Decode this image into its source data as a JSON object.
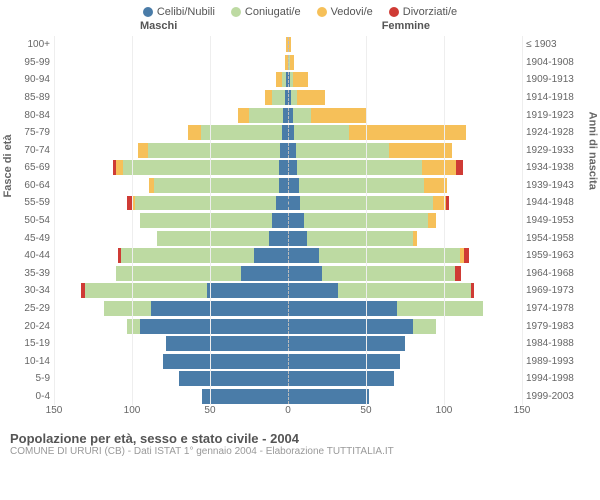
{
  "type": "population-pyramid",
  "legend": [
    {
      "label": "Celibi/Nubili",
      "color": "#4a7ca8"
    },
    {
      "label": "Coniugati/e",
      "color": "#bddaa2"
    },
    {
      "label": "Vedovi/e",
      "color": "#f6c059"
    },
    {
      "label": "Divorziati/e",
      "color": "#cf3b35"
    }
  ],
  "columns": {
    "left": "Maschi",
    "right": "Femmine"
  },
  "axes": {
    "left": "Fasce di età",
    "right": "Anni di nascita"
  },
  "xmax": 150,
  "xticks": [
    -150,
    -100,
    -50,
    0,
    50,
    100,
    150
  ],
  "xlabels": [
    "150",
    "100",
    "50",
    "0",
    "50",
    "100",
    "150"
  ],
  "grid_color": "#eeeeee",
  "centerline_color": "#bbbbbb",
  "background_color": "#ffffff",
  "label_color": "#666666",
  "label_fontsize": 10,
  "rows": [
    {
      "age": "100+",
      "birth": "≤ 1903",
      "m": [
        0,
        0,
        1,
        0
      ],
      "f": [
        0,
        0,
        2,
        0
      ]
    },
    {
      "age": "95-99",
      "birth": "1904-1908",
      "m": [
        0,
        0,
        2,
        0
      ],
      "f": [
        0,
        1,
        3,
        0
      ]
    },
    {
      "age": "90-94",
      "birth": "1909-1913",
      "m": [
        1,
        3,
        4,
        0
      ],
      "f": [
        1,
        2,
        10,
        0
      ]
    },
    {
      "age": "85-89",
      "birth": "1914-1918",
      "m": [
        2,
        8,
        5,
        0
      ],
      "f": [
        2,
        4,
        18,
        0
      ]
    },
    {
      "age": "80-84",
      "birth": "1919-1923",
      "m": [
        3,
        22,
        7,
        0
      ],
      "f": [
        3,
        12,
        35,
        0
      ]
    },
    {
      "age": "75-79",
      "birth": "1924-1928",
      "m": [
        4,
        52,
        8,
        0
      ],
      "f": [
        4,
        35,
        75,
        0
      ]
    },
    {
      "age": "70-74",
      "birth": "1929-1933",
      "m": [
        5,
        85,
        6,
        0
      ],
      "f": [
        5,
        60,
        40,
        0
      ]
    },
    {
      "age": "65-69",
      "birth": "1934-1938",
      "m": [
        6,
        100,
        4,
        2
      ],
      "f": [
        6,
        80,
        22,
        4
      ]
    },
    {
      "age": "60-64",
      "birth": "1939-1943",
      "m": [
        6,
        80,
        3,
        0
      ],
      "f": [
        7,
        80,
        15,
        0
      ]
    },
    {
      "age": "55-59",
      "birth": "1944-1948",
      "m": [
        8,
        90,
        2,
        3
      ],
      "f": [
        8,
        85,
        8,
        2
      ]
    },
    {
      "age": "50-54",
      "birth": "1949-1953",
      "m": [
        10,
        85,
        0,
        0
      ],
      "f": [
        10,
        80,
        5,
        0
      ]
    },
    {
      "age": "45-49",
      "birth": "1954-1958",
      "m": [
        12,
        72,
        0,
        0
      ],
      "f": [
        12,
        68,
        3,
        0
      ]
    },
    {
      "age": "40-44",
      "birth": "1959-1963",
      "m": [
        22,
        85,
        0,
        2
      ],
      "f": [
        20,
        90,
        3,
        3
      ]
    },
    {
      "age": "35-39",
      "birth": "1964-1968",
      "m": [
        30,
        80,
        0,
        0
      ],
      "f": [
        22,
        85,
        0,
        4
      ]
    },
    {
      "age": "30-34",
      "birth": "1969-1973",
      "m": [
        52,
        78,
        0,
        3
      ],
      "f": [
        32,
        85,
        0,
        2
      ]
    },
    {
      "age": "25-29",
      "birth": "1974-1978",
      "m": [
        88,
        30,
        0,
        0
      ],
      "f": [
        70,
        55,
        0,
        0
      ]
    },
    {
      "age": "20-24",
      "birth": "1979-1983",
      "m": [
        95,
        8,
        0,
        0
      ],
      "f": [
        80,
        15,
        0,
        0
      ]
    },
    {
      "age": "15-19",
      "birth": "1984-1988",
      "m": [
        78,
        0,
        0,
        0
      ],
      "f": [
        75,
        0,
        0,
        0
      ]
    },
    {
      "age": "10-14",
      "birth": "1989-1993",
      "m": [
        80,
        0,
        0,
        0
      ],
      "f": [
        72,
        0,
        0,
        0
      ]
    },
    {
      "age": "5-9",
      "birth": "1994-1998",
      "m": [
        70,
        0,
        0,
        0
      ],
      "f": [
        68,
        0,
        0,
        0
      ]
    },
    {
      "age": "0-4",
      "birth": "1999-2003",
      "m": [
        55,
        0,
        0,
        0
      ],
      "f": [
        52,
        0,
        0,
        0
      ]
    }
  ],
  "footer": {
    "title": "Popolazione per età, sesso e stato civile - 2004",
    "subtitle": "COMUNE DI URURI (CB) - Dati ISTAT 1° gennaio 2004 - Elaborazione TUTTITALIA.IT"
  }
}
